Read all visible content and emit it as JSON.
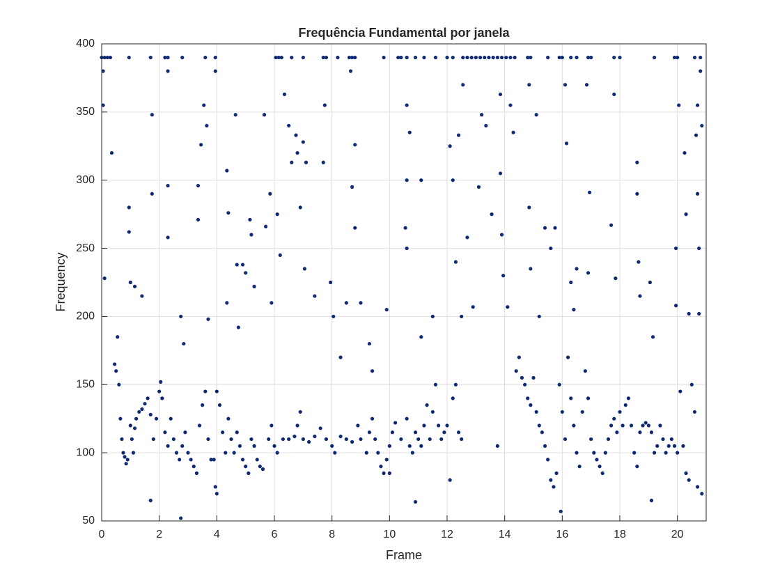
{
  "chart_data": {
    "type": "scatter",
    "title": "Frequência Fundamental por janela",
    "x_label": "Frame",
    "y_label": "Frequency",
    "color": "#0f2a74",
    "grid": true,
    "xlim": [
      0,
      21
    ],
    "ylim": [
      50,
      400
    ],
    "xticks": [
      0,
      2,
      4,
      6,
      8,
      10,
      12,
      14,
      16,
      18,
      20
    ],
    "yticks": [
      50,
      100,
      150,
      200,
      250,
      300,
      350,
      400
    ],
    "x": [
      0.45,
      0.5,
      0.55,
      0.6,
      0.65,
      0.7,
      0.75,
      0.8,
      0.85,
      0.9,
      1.0,
      1.05,
      1.1,
      1.15,
      1.2,
      1.3,
      1.4,
      1.5,
      1.6,
      1.7,
      1.8,
      1.9,
      2.0,
      2.05,
      2.1,
      2.2,
      2.3,
      2.4,
      2.5,
      2.6,
      2.7,
      2.8,
      2.9,
      3.0,
      3.1,
      3.2,
      3.3,
      3.4,
      3.5,
      3.6,
      3.7,
      3.8,
      3.9,
      4.0,
      4.1,
      4.2,
      4.3,
      4.4,
      4.5,
      4.6,
      4.7,
      4.8,
      4.9,
      5.0,
      5.1,
      5.2,
      5.3,
      5.4,
      5.5,
      5.6,
      5.8,
      5.9,
      6.0,
      6.1,
      6.3,
      6.5,
      6.7,
      6.8,
      6.9,
      7.0,
      7.2,
      7.4,
      7.6,
      7.8,
      8.0,
      8.1,
      8.3,
      8.5,
      8.7,
      8.9,
      9.0,
      9.2,
      9.3,
      9.4,
      9.5,
      9.6,
      9.7,
      9.8,
      9.9,
      10.0,
      10.1,
      10.2,
      10.4,
      10.6,
      10.7,
      10.8,
      10.9,
      11.0,
      11.1,
      11.2,
      11.3,
      11.4,
      11.5,
      11.6,
      11.7,
      11.8,
      11.9,
      12.0,
      12.1,
      12.2,
      12.3,
      12.4,
      12.5,
      14.4,
      14.5,
      14.6,
      14.7,
      14.8,
      14.9,
      15.0,
      15.1,
      15.2,
      15.3,
      15.4,
      15.5,
      15.6,
      15.7,
      15.8,
      15.9,
      16.0,
      16.1,
      16.2,
      16.3,
      16.4,
      16.5,
      16.6,
      16.7,
      16.8,
      16.9,
      17.0,
      17.1,
      17.2,
      17.3,
      17.4,
      17.5,
      17.6,
      17.7,
      17.8,
      17.9,
      18.0,
      18.1,
      18.2,
      18.3,
      18.4,
      18.5,
      18.6,
      18.7,
      18.8,
      18.9,
      19.0,
      19.1,
      19.2,
      19.3,
      19.4,
      19.5,
      19.6,
      19.7,
      19.8,
      19.9,
      20.0,
      20.1,
      20.2,
      20.3,
      20.4,
      20.5,
      20.6,
      20.7,
      0.0,
      0.1,
      0.2,
      0.3,
      0.95,
      1.7,
      2.2,
      2.3,
      2.8,
      3.6,
      3.95,
      6.05,
      6.15,
      6.25,
      6.6,
      7.0,
      7.7,
      7.8,
      8.2,
      8.6,
      8.7,
      8.8,
      9.8,
      10.3,
      10.4,
      10.6,
      10.9,
      11.2,
      11.6,
      12.0,
      12.2,
      12.55,
      12.7,
      12.85,
      13.0,
      13.15,
      13.3,
      13.45,
      13.6,
      13.75,
      13.9,
      14.05,
      14.2,
      14.35,
      14.8,
      14.9,
      15.5,
      15.9,
      16.0,
      16.3,
      16.5,
      16.9,
      17.0,
      17.8,
      18.0,
      19.2,
      19.9,
      20.0,
      20.6,
      20.8,
      0.05,
      0.1,
      0.05,
      0.35,
      0.95,
      0.95,
      1.0,
      1.15,
      1.4,
      1.75,
      1.75,
      1.7,
      2.3,
      2.3,
      2.3,
      2.75,
      2.75,
      2.85,
      3.35,
      3.35,
      3.45,
      3.55,
      3.65,
      3.7,
      3.95,
      3.95,
      4.0,
      4.35,
      4.4,
      4.35,
      4.65,
      4.7,
      4.75,
      4.9,
      5.0,
      5.15,
      5.2,
      5.3,
      5.65,
      5.7,
      5.85,
      5.9,
      6.1,
      6.2,
      6.35,
      6.5,
      6.6,
      6.75,
      6.8,
      6.9,
      7.0,
      7.1,
      7.05,
      7.4,
      7.75,
      7.7,
      7.95,
      8.05,
      8.3,
      8.5,
      8.65,
      8.7,
      8.8,
      8.8,
      9.0,
      9.3,
      9.4,
      9.9,
      10.0,
      10.6,
      10.6,
      10.55,
      10.6,
      10.7,
      11.1,
      11.1,
      10.9,
      11.5,
      12.1,
      12.2,
      12.3,
      12.4,
      12.5,
      12.55,
      12.7,
      12.9,
      13.1,
      13.2,
      13.35,
      13.55,
      13.75,
      13.85,
      13.85,
      13.9,
      13.95,
      14.1,
      14.2,
      14.3,
      14.85,
      14.9,
      14.85,
      15.1,
      15.2,
      15.4,
      15.6,
      15.75,
      15.95,
      16.1,
      16.15,
      16.3,
      16.4,
      16.5,
      16.85,
      16.95,
      16.9,
      17.7,
      17.85,
      17.8,
      18.6,
      18.6,
      18.65,
      18.7,
      19.05,
      19.15,
      19.1,
      19.95,
      19.95,
      20.05,
      20.25,
      20.3,
      20.4,
      20.65,
      20.7,
      20.75,
      20.75,
      20.85,
      20.85,
      20.8,
      20.7
    ],
    "values": [
      165,
      160,
      185,
      150,
      125,
      110,
      100,
      97,
      92,
      95,
      120,
      110,
      100,
      118,
      125,
      130,
      132,
      136,
      140,
      128,
      110,
      125,
      145,
      152,
      140,
      115,
      105,
      125,
      110,
      100,
      95,
      105,
      115,
      100,
      95,
      90,
      85,
      120,
      135,
      145,
      110,
      95,
      95,
      145,
      135,
      115,
      100,
      125,
      110,
      100,
      115,
      105,
      95,
      90,
      85,
      110,
      105,
      95,
      90,
      88,
      110,
      120,
      105,
      100,
      110,
      110,
      112,
      120,
      130,
      110,
      108,
      112,
      118,
      110,
      105,
      100,
      112,
      110,
      108,
      120,
      110,
      100,
      115,
      125,
      110,
      100,
      90,
      85,
      95,
      105,
      115,
      122,
      110,
      125,
      105,
      100,
      115,
      110,
      105,
      120,
      135,
      110,
      130,
      150,
      120,
      110,
      115,
      120,
      80,
      140,
      150,
      115,
      110,
      160,
      170,
      155,
      150,
      140,
      135,
      155,
      130,
      120,
      115,
      105,
      95,
      80,
      75,
      85,
      150,
      130,
      110,
      170,
      140,
      120,
      100,
      90,
      130,
      160,
      140,
      110,
      100,
      95,
      90,
      85,
      100,
      110,
      120,
      125,
      115,
      130,
      120,
      135,
      140,
      120,
      100,
      90,
      115,
      120,
      122,
      120,
      115,
      100,
      105,
      120,
      110,
      100,
      105,
      110,
      105,
      100,
      145,
      105,
      85,
      80,
      150,
      130,
      75,
      390,
      390,
      390,
      390,
      390,
      390,
      390,
      390,
      390,
      390,
      390,
      390,
      390,
      390,
      390,
      390,
      390,
      390,
      390,
      390,
      390,
      390,
      390,
      390,
      390,
      390,
      390,
      390,
      390,
      390,
      390,
      390,
      390,
      390,
      390,
      390,
      390,
      390,
      390,
      390,
      390,
      390,
      390,
      390,
      390,
      390,
      390,
      390,
      390,
      390,
      390,
      390,
      390,
      390,
      390,
      390,
      390,
      390,
      390,
      390,
      380,
      228,
      355,
      320,
      280,
      262,
      225,
      222,
      215,
      348,
      290,
      65,
      380,
      296,
      258,
      52,
      200,
      180,
      296,
      271,
      326,
      355,
      340,
      198,
      380,
      75,
      70,
      307,
      276,
      210,
      348,
      238,
      192,
      238,
      232,
      271,
      260,
      222,
      348,
      266,
      290,
      210,
      275,
      245,
      363,
      340,
      313,
      333,
      320,
      280,
      328,
      313,
      235,
      215,
      355,
      313,
      225,
      200,
      170,
      210,
      380,
      295,
      265,
      326,
      210,
      180,
      160,
      205,
      85,
      355,
      300,
      265,
      250,
      335,
      185,
      300,
      64,
      200,
      325,
      300,
      240,
      333,
      200,
      370,
      258,
      207,
      295,
      348,
      340,
      275,
      105,
      363,
      305,
      260,
      230,
      207,
      355,
      335,
      280,
      235,
      370,
      348,
      200,
      265,
      250,
      265,
      57,
      370,
      327,
      225,
      205,
      235,
      370,
      291,
      232,
      267,
      228,
      363,
      313,
      290,
      240,
      215,
      225,
      185,
      65,
      250,
      208,
      355,
      320,
      275,
      202,
      333,
      290,
      250,
      202,
      340,
      70,
      380,
      355
    ]
  }
}
